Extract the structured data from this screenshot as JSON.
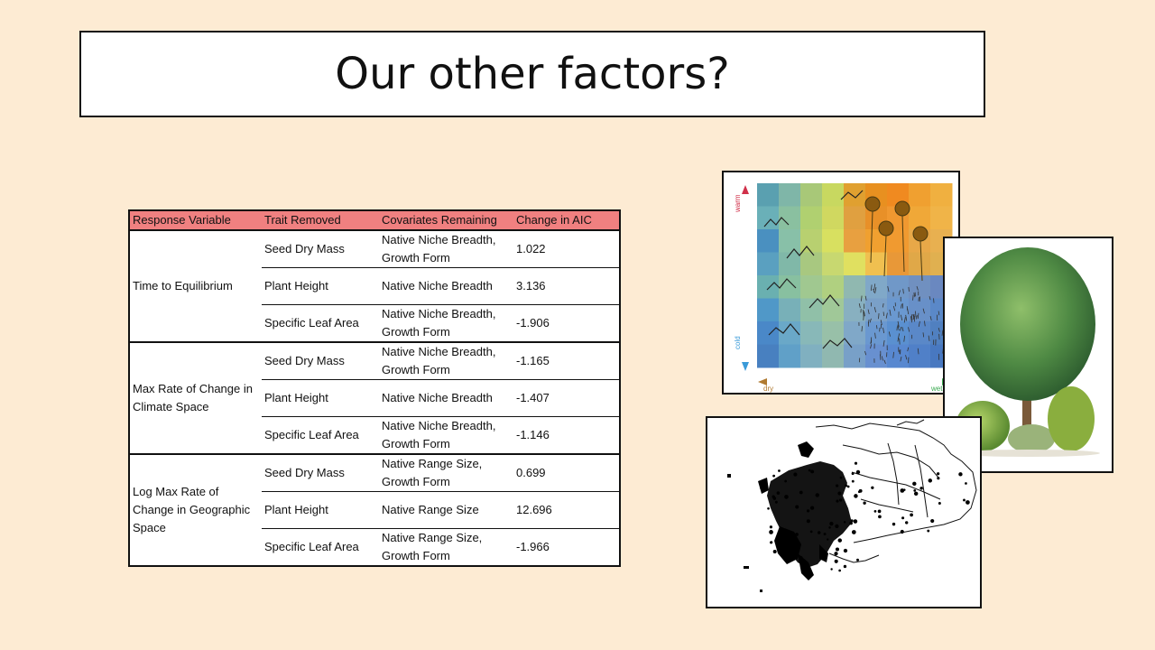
{
  "slide": {
    "title": "Our other factors?"
  },
  "table": {
    "headers": [
      "Response Variable",
      "Trait Removed",
      "Covariates Remaining",
      "Change in AIC"
    ],
    "groups": [
      {
        "response": "Time to Equilibrium",
        "rows": [
          {
            "trait": "Seed Dry Mass",
            "covariates": "Native Niche Breadth, Growth Form",
            "aic": "1.022"
          },
          {
            "trait": "Plant Height",
            "covariates": "Native Niche Breadth",
            "aic": "3.136"
          },
          {
            "trait": "Specific Leaf Area",
            "covariates": "Native Niche Breadth, Growth Form",
            "aic": "-1.906"
          }
        ]
      },
      {
        "response": "Max Rate of Change in Climate Space",
        "rows": [
          {
            "trait": "Seed Dry Mass",
            "covariates": "Native Niche Breadth, Growth Form",
            "aic": "-1.165"
          },
          {
            "trait": "Plant Height",
            "covariates": "Native Niche Breadth",
            "aic": "-1.407"
          },
          {
            "trait": "Specific Leaf Area",
            "covariates": "Native Niche Breadth, Growth Form",
            "aic": "-1.146"
          }
        ]
      },
      {
        "response": "Log Max Rate of Change in Geographic Space",
        "rows": [
          {
            "trait": "Seed Dry Mass",
            "covariates": "Native Range Size, Growth Form",
            "aic": "0.699"
          },
          {
            "trait": "Plant Height",
            "covariates": "Native Range Size",
            "aic": "12.696"
          },
          {
            "trait": "Specific Leaf Area",
            "covariates": "Native Range Size, Growth Form",
            "aic": "-1.966"
          }
        ]
      }
    ]
  },
  "climate_image": {
    "label_warm": "warm",
    "label_cold": "cold",
    "label_dry": "dry",
    "label_wet": "wet"
  },
  "colors": {
    "background": "#fdebd3",
    "header_fill": "#f08080"
  }
}
